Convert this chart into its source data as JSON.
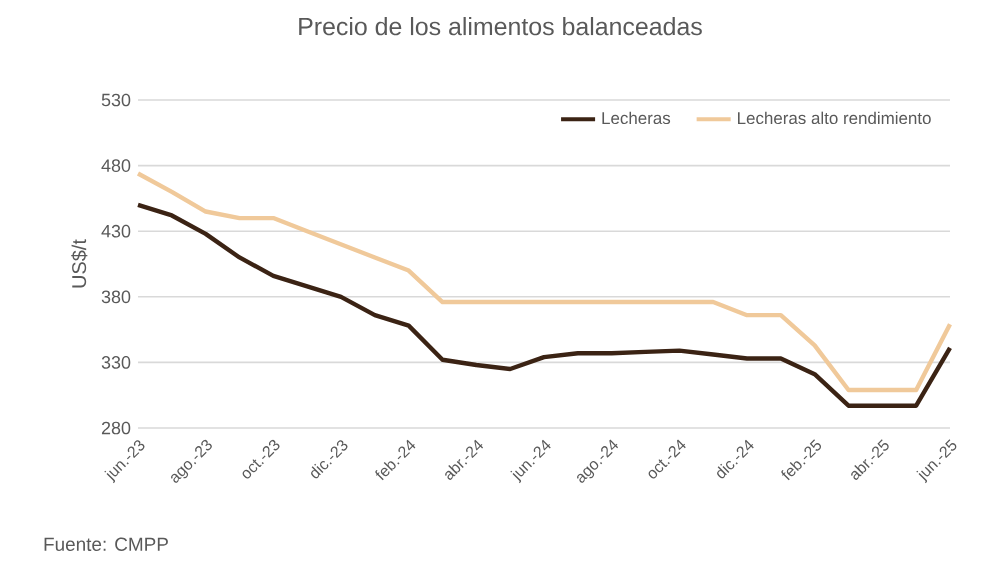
{
  "chart_data": {
    "type": "line",
    "title": "Precio de los alimentos balanceadas",
    "ylabel": "US$/t",
    "categories": [
      "jun.-23",
      null,
      "ago.-23",
      null,
      "oct.-23",
      null,
      "dic.-23",
      null,
      "feb.-24",
      null,
      "abr.-24",
      null,
      "jun.-24",
      null,
      "ago.-24",
      null,
      "oct.-24",
      null,
      "dic.-24",
      null,
      "feb.-25",
      null,
      "abr.-25",
      null,
      "jun.-25"
    ],
    "series": [
      {
        "name": "Lecheras",
        "color": "#3b2314",
        "values": [
          450,
          442,
          428,
          410,
          396,
          388,
          380,
          366,
          358,
          332,
          328,
          325,
          334,
          337,
          337,
          338,
          339,
          336,
          333,
          333,
          321,
          297,
          297,
          297,
          341
        ]
      },
      {
        "name": "Lecheras alto rendimiento",
        "color": "#f0c99a",
        "values": [
          474,
          460,
          445,
          440,
          440,
          430,
          420,
          410,
          400,
          376,
          376,
          376,
          376,
          376,
          376,
          376,
          376,
          376,
          366,
          366,
          343,
          309,
          309,
          309,
          359
        ]
      }
    ],
    "ylim": [
      280,
      530
    ],
    "yticks": [
      280,
      330,
      380,
      430,
      480,
      530
    ],
    "grid": "y",
    "legend": "top right",
    "marker": "none",
    "line_style": "solid",
    "annotations": [
      "Fuente: CMPP"
    ]
  }
}
